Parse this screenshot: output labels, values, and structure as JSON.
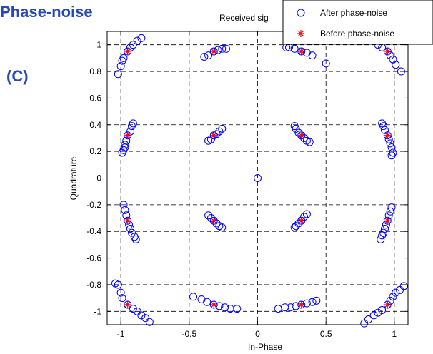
{
  "panel": {
    "heading": "Phase-noise",
    "label": "(C)"
  },
  "chart_data": {
    "type": "scatter",
    "title": "Received sig",
    "xlabel": "In-Phase",
    "ylabel": "Quadrature",
    "xlim": [
      -1.1,
      1.1
    ],
    "ylim": [
      -1.1,
      1.1
    ],
    "xticks": [
      -1,
      -0.5,
      0,
      0.5,
      1
    ],
    "xtick_labels": [
      "-1",
      "-0.5",
      "0",
      "0.5",
      "1"
    ],
    "yticks": [
      1,
      0.8,
      0.6,
      0.4,
      0.2,
      0,
      -0.2,
      -0.4,
      -0.6,
      -0.8,
      -1
    ],
    "ytick_labels": [
      "1",
      "0.8",
      "0.6",
      "0.4",
      "0.2",
      "0",
      "-0.2",
      "-0.4",
      "-0.6",
      "-0.8",
      "-1"
    ],
    "grid": true,
    "grid_style": "dashed",
    "legend_position": "top-right",
    "series": [
      {
        "name": "After phase-noise",
        "marker": "circle",
        "color": "#0000ff",
        "points": [
          [
            -0.95,
            0.95
          ],
          [
            -0.99,
            0.88
          ],
          [
            -1.0,
            0.84
          ],
          [
            -1.02,
            0.78
          ],
          [
            -0.98,
            0.9
          ],
          [
            -0.93,
            0.98
          ],
          [
            -0.91,
            1.0
          ],
          [
            -0.88,
            1.03
          ],
          [
            -0.85,
            1.05
          ],
          [
            -0.32,
            0.95
          ],
          [
            -0.36,
            0.92
          ],
          [
            -0.39,
            0.91
          ],
          [
            -0.29,
            0.96
          ],
          [
            -0.26,
            0.97
          ],
          [
            -0.23,
            0.97
          ],
          [
            0.32,
            0.95
          ],
          [
            0.27,
            0.97
          ],
          [
            0.23,
            0.98
          ],
          [
            0.21,
            0.98
          ],
          [
            0.36,
            0.94
          ],
          [
            0.4,
            0.92
          ],
          [
            0.5,
            0.86
          ],
          [
            0.95,
            0.95
          ],
          [
            0.91,
            0.98
          ],
          [
            0.88,
            1.0
          ],
          [
            0.97,
            0.92
          ],
          [
            0.99,
            0.89
          ],
          [
            1.01,
            0.85
          ],
          [
            1.05,
            0.8
          ],
          [
            0.84,
            1.05
          ],
          [
            0.86,
            1.04
          ],
          [
            -0.95,
            0.32
          ],
          [
            -0.93,
            0.35
          ],
          [
            -0.92,
            0.39
          ],
          [
            -0.91,
            0.41
          ],
          [
            -0.96,
            0.28
          ],
          [
            -0.97,
            0.25
          ],
          [
            -0.98,
            0.21
          ],
          [
            -0.99,
            0.19
          ],
          [
            -0.97,
            0.23
          ],
          [
            -0.32,
            0.32
          ],
          [
            -0.34,
            0.29
          ],
          [
            -0.36,
            0.28
          ],
          [
            -0.3,
            0.33
          ],
          [
            -0.28,
            0.35
          ],
          [
            -0.26,
            0.37
          ],
          [
            0.32,
            0.32
          ],
          [
            0.3,
            0.34
          ],
          [
            0.28,
            0.37
          ],
          [
            0.27,
            0.39
          ],
          [
            0.34,
            0.3
          ],
          [
            0.36,
            0.28
          ],
          [
            0.38,
            0.27
          ],
          [
            0.95,
            0.32
          ],
          [
            0.93,
            0.36
          ],
          [
            0.92,
            0.39
          ],
          [
            0.91,
            0.41
          ],
          [
            0.96,
            0.29
          ],
          [
            0.97,
            0.26
          ],
          [
            0.98,
            0.23
          ],
          [
            0.99,
            0.19
          ],
          [
            0.98,
            0.17
          ],
          [
            0.0,
            0.0
          ],
          [
            -0.95,
            -0.32
          ],
          [
            -0.96,
            -0.28
          ],
          [
            -0.97,
            -0.24
          ],
          [
            -0.98,
            -0.2
          ],
          [
            -0.94,
            -0.35
          ],
          [
            -0.93,
            -0.38
          ],
          [
            -0.92,
            -0.41
          ],
          [
            -0.9,
            -0.44
          ],
          [
            -0.89,
            -0.46
          ],
          [
            -0.32,
            -0.32
          ],
          [
            -0.34,
            -0.3
          ],
          [
            -0.36,
            -0.28
          ],
          [
            -0.3,
            -0.34
          ],
          [
            -0.28,
            -0.36
          ],
          [
            -0.26,
            -0.37
          ],
          [
            0.32,
            -0.32
          ],
          [
            0.34,
            -0.29
          ],
          [
            0.36,
            -0.27
          ],
          [
            0.3,
            -0.34
          ],
          [
            0.28,
            -0.36
          ],
          [
            0.27,
            -0.37
          ],
          [
            0.95,
            -0.32
          ],
          [
            0.96,
            -0.28
          ],
          [
            0.97,
            -0.25
          ],
          [
            0.98,
            -0.22
          ],
          [
            0.94,
            -0.35
          ],
          [
            0.93,
            -0.38
          ],
          [
            0.92,
            -0.41
          ],
          [
            0.91,
            -0.43
          ],
          [
            0.9,
            -0.46
          ],
          [
            -0.95,
            -0.95
          ],
          [
            -0.99,
            -0.9
          ],
          [
            -1.0,
            -0.86
          ],
          [
            -1.02,
            -0.8
          ],
          [
            -1.04,
            -0.79
          ],
          [
            -0.91,
            -0.98
          ],
          [
            -0.88,
            -1.0
          ],
          [
            -0.85,
            -1.03
          ],
          [
            -0.82,
            -1.05
          ],
          [
            -0.79,
            -1.08
          ],
          [
            -0.32,
            -0.95
          ],
          [
            -0.28,
            -0.96
          ],
          [
            -0.24,
            -0.97
          ],
          [
            -0.2,
            -0.98
          ],
          [
            -0.15,
            -0.98
          ],
          [
            -0.37,
            -0.93
          ],
          [
            -0.41,
            -0.91
          ],
          [
            -0.47,
            -0.89
          ],
          [
            0.32,
            -0.95
          ],
          [
            0.28,
            -0.96
          ],
          [
            0.24,
            -0.97
          ],
          [
            0.2,
            -0.97
          ],
          [
            0.15,
            -0.98
          ],
          [
            0.36,
            -0.94
          ],
          [
            0.4,
            -0.93
          ],
          [
            0.43,
            -0.92
          ],
          [
            0.95,
            -0.95
          ],
          [
            0.97,
            -0.92
          ],
          [
            0.99,
            -0.89
          ],
          [
            1.01,
            -0.86
          ],
          [
            1.04,
            -0.84
          ],
          [
            1.07,
            -0.81
          ],
          [
            0.91,
            -0.99
          ],
          [
            0.88,
            -1.01
          ],
          [
            0.85,
            -1.03
          ],
          [
            0.81,
            -1.06
          ],
          [
            0.78,
            -1.09
          ]
        ]
      },
      {
        "name": "Before phase-noise",
        "marker": "star",
        "color": "#ff0000",
        "points": [
          [
            -0.95,
            0.95
          ],
          [
            -0.32,
            0.95
          ],
          [
            0.32,
            0.95
          ],
          [
            0.95,
            0.95
          ],
          [
            -0.95,
            0.32
          ],
          [
            -0.32,
            0.32
          ],
          [
            0.32,
            0.32
          ],
          [
            0.95,
            0.32
          ],
          [
            -0.95,
            -0.32
          ],
          [
            -0.32,
            -0.32
          ],
          [
            0.32,
            -0.32
          ],
          [
            0.95,
            -0.32
          ],
          [
            -0.95,
            -0.95
          ],
          [
            -0.32,
            -0.95
          ],
          [
            0.32,
            -0.95
          ],
          [
            0.95,
            -0.95
          ]
        ]
      }
    ]
  }
}
